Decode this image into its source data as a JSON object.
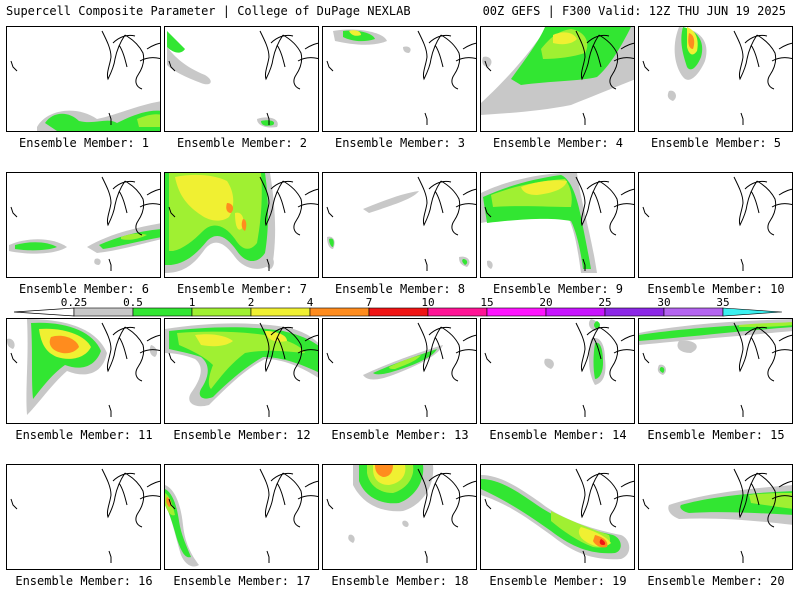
{
  "header": {
    "left": "Supercell Composite Parameter | College of DuPage NEXLAB",
    "right": "00Z GEFS | F300 Valid: 12Z THU JUN 19 2025"
  },
  "member_label_prefix": "Ensemble Member: ",
  "members": [
    "1",
    "2",
    "3",
    "4",
    "5",
    "6",
    "7",
    "8",
    "9",
    "10",
    "11",
    "12",
    "13",
    "14",
    "15",
    "16",
    "17",
    "18",
    "19",
    "20"
  ],
  "colorbar": {
    "ticks": [
      "0.25",
      "0.5",
      "1",
      "2",
      "4",
      "7",
      "10",
      "15",
      "20",
      "25",
      "30",
      "35"
    ],
    "colors": [
      "#c8c8c8",
      "#32e632",
      "#a0f032",
      "#f0f032",
      "#ff8c1e",
      "#f01414",
      "#ff1496",
      "#ff14ff",
      "#c814ff",
      "#8c28e6",
      "#b464f0",
      "#3cf0f0"
    ]
  },
  "colors": {
    "gray": "#c8c8c8",
    "green": "#32e632",
    "lightgreen": "#a0f032",
    "yellow": "#f0f032",
    "orange": "#ff8c1e",
    "red": "#f01414",
    "map_line": "#000000"
  }
}
